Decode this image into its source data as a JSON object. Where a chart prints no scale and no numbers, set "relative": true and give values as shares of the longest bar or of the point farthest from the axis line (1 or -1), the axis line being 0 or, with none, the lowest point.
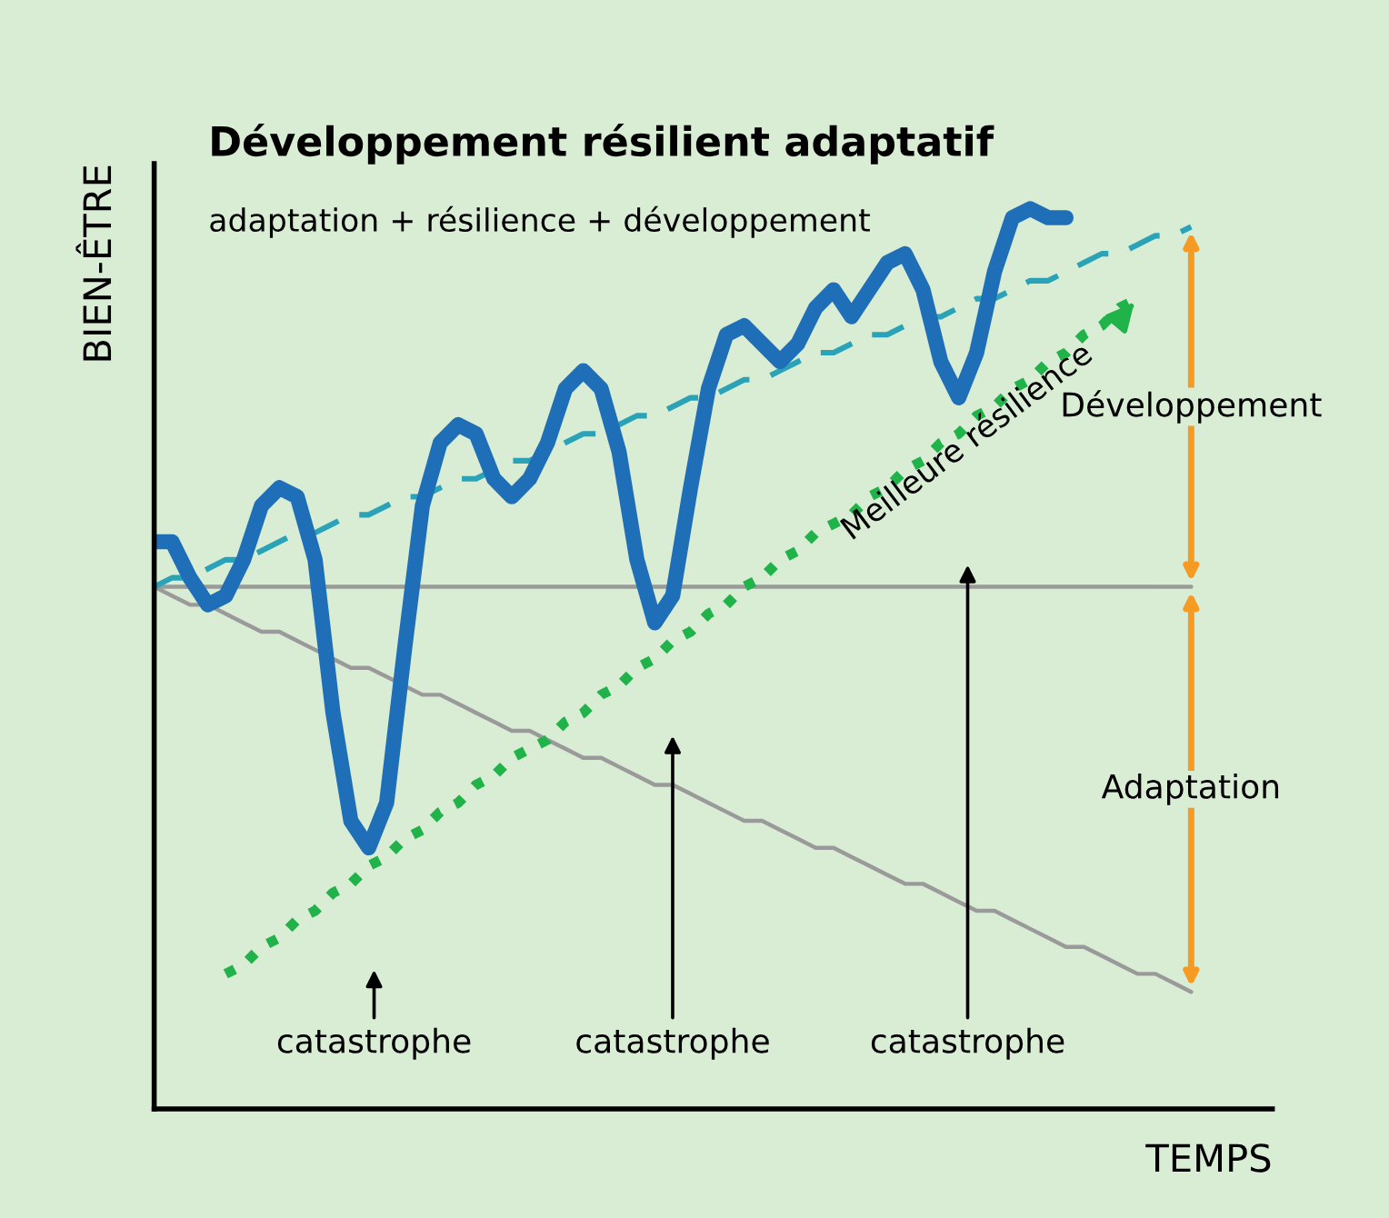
{
  "chart_data": {
    "type": "line",
    "title": "Développement résilient adaptatif",
    "subtitle": "adaptation + résilience + développement",
    "xlabel": "TEMPS",
    "ylabel": "BIEN-ÊTRE",
    "relative": true,
    "categories": [
      null,
      null,
      null,
      null,
      null,
      null,
      null,
      null,
      null,
      null,
      null,
      null,
      null,
      null,
      null,
      null,
      null,
      null,
      null,
      null,
      null,
      null,
      null,
      null,
      null,
      null,
      null,
      null,
      null,
      null,
      null,
      null,
      null,
      null,
      null,
      null,
      null,
      null,
      null,
      null,
      null,
      null,
      null,
      null,
      null,
      null,
      null,
      null,
      null,
      null,
      null,
      null,
      null,
      null,
      null,
      null,
      null,
      null,
      null
    ],
    "series": [
      {
        "color": "#9a9a9a",
        "line_style": "solid",
        "values": [
          0.58,
          0.58,
          0.58,
          0.58,
          0.58,
          0.58,
          0.58,
          0.58,
          0.58,
          0.58,
          0.58,
          0.58,
          0.58,
          0.58,
          0.58,
          0.58,
          0.58,
          0.58,
          0.58,
          0.58,
          0.58,
          0.58,
          0.58,
          0.58,
          0.58,
          0.58,
          0.58,
          0.58,
          0.58,
          0.58,
          0.58,
          0.58,
          0.58,
          0.58,
          0.58,
          0.58,
          0.58,
          0.58,
          0.58,
          0.58,
          0.58,
          0.58,
          0.58,
          0.58,
          0.58,
          0.58,
          0.58,
          0.58,
          0.58,
          0.58,
          0.58,
          0.58,
          0.58,
          0.58,
          0.58,
          0.58,
          0.58,
          0.58,
          0.58
        ]
      },
      {
        "color": "#9a9a9a",
        "line_style": "solid",
        "values": [
          0.58,
          0.57,
          0.56,
          0.56,
          0.55,
          0.54,
          0.53,
          0.53,
          0.52,
          0.51,
          0.5,
          0.49,
          0.49,
          0.48,
          0.47,
          0.46,
          0.46,
          0.45,
          0.44,
          0.43,
          0.42,
          0.42,
          0.41,
          0.4,
          0.39,
          0.39,
          0.38,
          0.37,
          0.36,
          0.36,
          0.35,
          0.34,
          0.33,
          0.32,
          0.32,
          0.31,
          0.3,
          0.29,
          0.29,
          0.28,
          0.27,
          0.26,
          0.25,
          0.25,
          0.24,
          0.23,
          0.22,
          0.22,
          0.21,
          0.2,
          0.19,
          0.18,
          0.18,
          0.17,
          0.16,
          0.15,
          0.15,
          0.14,
          0.13
        ]
      },
      {
        "color": "#2aa3b8",
        "line_style": "dashed",
        "values": [
          0.58,
          0.59,
          0.59,
          0.6,
          0.61,
          0.61,
          0.62,
          0.63,
          0.64,
          0.64,
          0.65,
          0.66,
          0.66,
          0.67,
          0.68,
          0.68,
          0.69,
          0.7,
          0.7,
          0.71,
          0.72,
          0.72,
          0.73,
          0.74,
          0.75,
          0.75,
          0.76,
          0.77,
          0.77,
          0.78,
          0.79,
          0.79,
          0.8,
          0.81,
          0.81,
          0.82,
          0.83,
          0.84,
          0.84,
          0.85,
          0.86,
          0.86,
          0.87,
          0.88,
          0.88,
          0.89,
          0.9,
          0.9,
          0.91,
          0.92,
          0.92,
          0.93,
          0.94,
          0.95,
          0.95,
          0.96,
          0.97,
          0.97,
          0.98
        ]
      },
      {
        "color": "#1fb34a",
        "line_style": "dotted",
        "values": [
          null,
          null,
          null,
          null,
          0.15,
          0.16,
          0.18,
          0.19,
          0.21,
          0.22,
          0.24,
          0.25,
          0.27,
          0.28,
          0.3,
          0.31,
          0.33,
          0.34,
          0.36,
          0.37,
          0.39,
          0.4,
          0.41,
          0.43,
          0.44,
          0.46,
          0.47,
          0.49,
          0.5,
          0.52,
          0.53,
          0.55,
          0.56,
          0.58,
          0.59,
          0.61,
          0.62,
          0.64,
          0.65,
          0.66,
          0.68,
          0.69,
          0.71,
          0.72,
          0.74,
          0.75,
          0.77,
          0.78,
          0.8,
          0.81,
          0.83,
          0.84,
          0.86,
          0.87,
          0.89,
          0.9,
          null,
          null,
          null
        ]
      },
      {
        "color": "#1f6fb8",
        "line_style": "solid",
        "values": [
          0.63,
          0.63,
          0.59,
          0.56,
          0.57,
          0.61,
          0.67,
          0.69,
          0.68,
          0.61,
          0.44,
          0.32,
          0.29,
          0.34,
          0.51,
          0.67,
          0.74,
          0.76,
          0.75,
          0.7,
          0.68,
          0.7,
          0.74,
          0.8,
          0.82,
          0.8,
          0.73,
          0.61,
          0.54,
          0.57,
          0.69,
          0.8,
          0.86,
          0.87,
          0.85,
          0.83,
          0.85,
          0.89,
          0.91,
          0.88,
          0.91,
          0.94,
          0.95,
          0.91,
          0.83,
          0.79,
          0.84,
          0.93,
          0.99,
          1.0,
          0.99,
          0.99,
          null,
          null,
          null,
          null,
          null,
          null,
          null
        ]
      }
    ],
    "annotations": [
      "catastrophe",
      "catastrophe",
      "catastrophe",
      "Développement",
      "Adaptation",
      "Meilleure résilience"
    ]
  }
}
